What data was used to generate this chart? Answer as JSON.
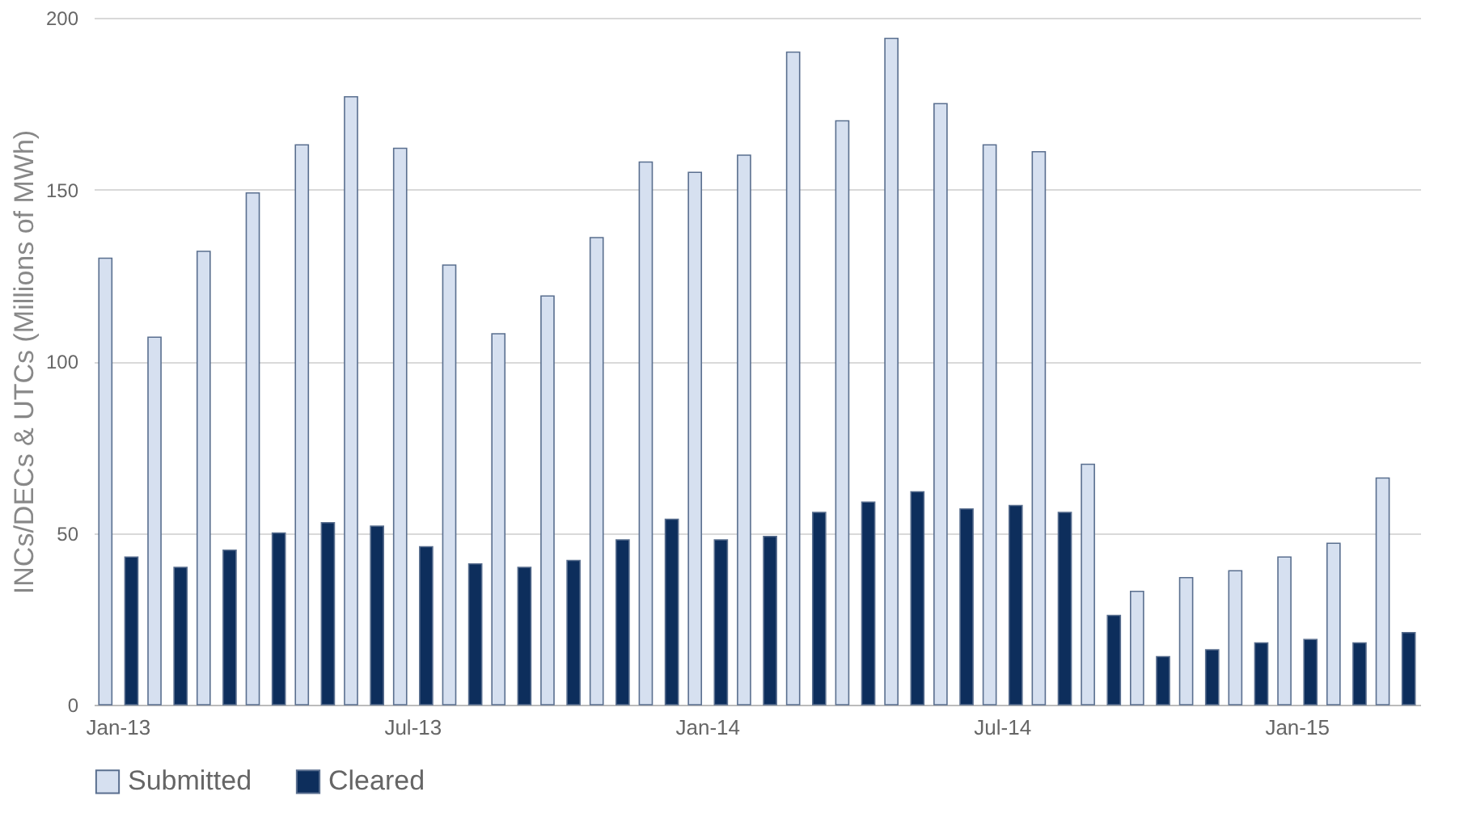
{
  "chart_data": {
    "type": "bar",
    "ylabel": "INCs/DECs & UTCs (Millions of MWh)",
    "categories": [
      "Jan-13",
      null,
      null,
      null,
      null,
      null,
      "Jul-13",
      null,
      null,
      null,
      null,
      null,
      "Jan-14",
      null,
      null,
      null,
      null,
      null,
      "Jul-14",
      null,
      null,
      null,
      null,
      null,
      "Jan-15",
      null,
      null
    ],
    "series": [
      {
        "name": "Submitted",
        "color": "#d6e0f0",
        "values": [
          130,
          107,
          132,
          149,
          163,
          177,
          162,
          128,
          108,
          119,
          136,
          158,
          155,
          160,
          190,
          170,
          194,
          175,
          163,
          161,
          70,
          33,
          37,
          39,
          43,
          47,
          66
        ]
      },
      {
        "name": "Cleared",
        "color": "#0d2e5c",
        "values": [
          43,
          40,
          45,
          50,
          53,
          52,
          46,
          41,
          40,
          42,
          48,
          54,
          48,
          49,
          56,
          59,
          62,
          57,
          58,
          56,
          26,
          14,
          16,
          18,
          19,
          18,
          21
        ]
      }
    ],
    "ylim": [
      0,
      200
    ],
    "yticks": [
      0,
      50,
      100,
      150,
      200
    ],
    "grid": "y",
    "legend": "bottom"
  }
}
